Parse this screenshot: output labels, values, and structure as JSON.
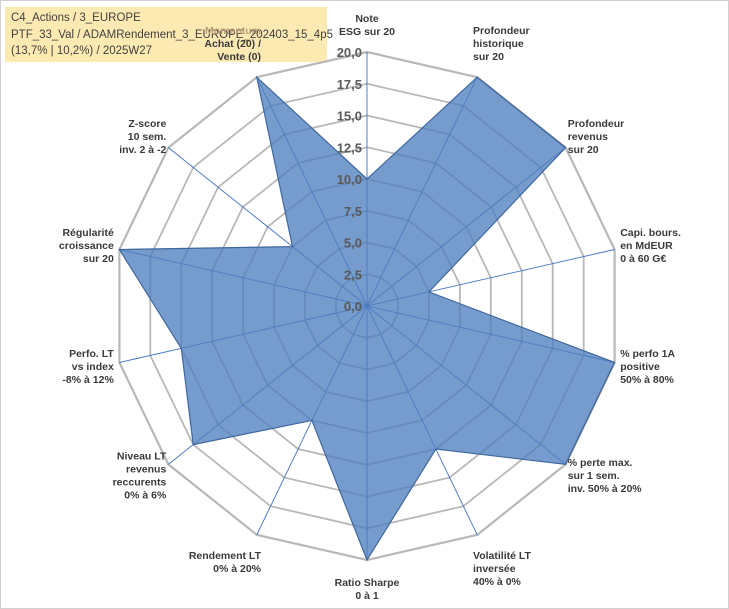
{
  "header": {
    "line1": "C4_Actions / 3_EUROPE",
    "line2": "PTF_33_Val / ADAMRendement_3_EUROPE_202403_15_4p5",
    "line3": "(13,7% | 10,2%) / 2025W27"
  },
  "chart_data": {
    "type": "radar",
    "rmin": 0,
    "rmax": 20,
    "rings": [
      0,
      2.5,
      5,
      7.5,
      10,
      12.5,
      15,
      17.5,
      20
    ],
    "tick_labels": [
      "0,0",
      "2,5",
      "5,0",
      "7,5",
      "10,0",
      "12,5",
      "15,0",
      "17,5",
      "20,0"
    ],
    "axes": [
      {
        "label": [
          "Note",
          "ESG sur 20"
        ],
        "value": 10
      },
      {
        "label": [
          "Profondeur",
          "historique",
          "sur 20"
        ],
        "value": 20
      },
      {
        "label": [
          "Profondeur",
          "revenus",
          "sur 20"
        ],
        "value": 20
      },
      {
        "label": [
          "Capi. bours.",
          "en MdEUR",
          "0 à 60 G€"
        ],
        "value": 5
      },
      {
        "label": [
          "% perfo 1A",
          "positive",
          "50% à 80%"
        ],
        "value": 20
      },
      {
        "label": [
          "% perte max.",
          "sur 1 sem.",
          "inv. 50% à 20%"
        ],
        "value": 20
      },
      {
        "label": [
          "Volatilité LT",
          "inversée",
          "40% à 0%"
        ],
        "value": 12.5
      },
      {
        "label": [
          "Ratio Sharpe",
          "0 à 1"
        ],
        "value": 20
      },
      {
        "label": [
          "Rendement LT",
          "0% à 20%"
        ],
        "value": 10
      },
      {
        "label": [
          "Niveau LT",
          "revenus",
          "reccurents",
          "0% à 6%"
        ],
        "value": 17.5
      },
      {
        "label": [
          "Perfo. LT",
          "vs index",
          "-8% à 12%"
        ],
        "value": 15
      },
      {
        "label": [
          "Régularité",
          "croissance",
          "sur 20"
        ],
        "value": 20
      },
      {
        "label": [
          "Z-score",
          "10 sem.",
          "inv. 2 à -2"
        ],
        "value": 7.5
      },
      {
        "label": [
          "Momentum",
          "Achat (20) /",
          "Vente (0)"
        ],
        "value": 20
      }
    ],
    "colors": {
      "fill": "#4f7fbf",
      "fill_opacity": 0.78,
      "outline": "#41689e",
      "spoke": "#4472c4",
      "grid": "#b8b8b8",
      "header_bg": "#fde9b2",
      "highlight_label": "#b7a07a"
    }
  }
}
